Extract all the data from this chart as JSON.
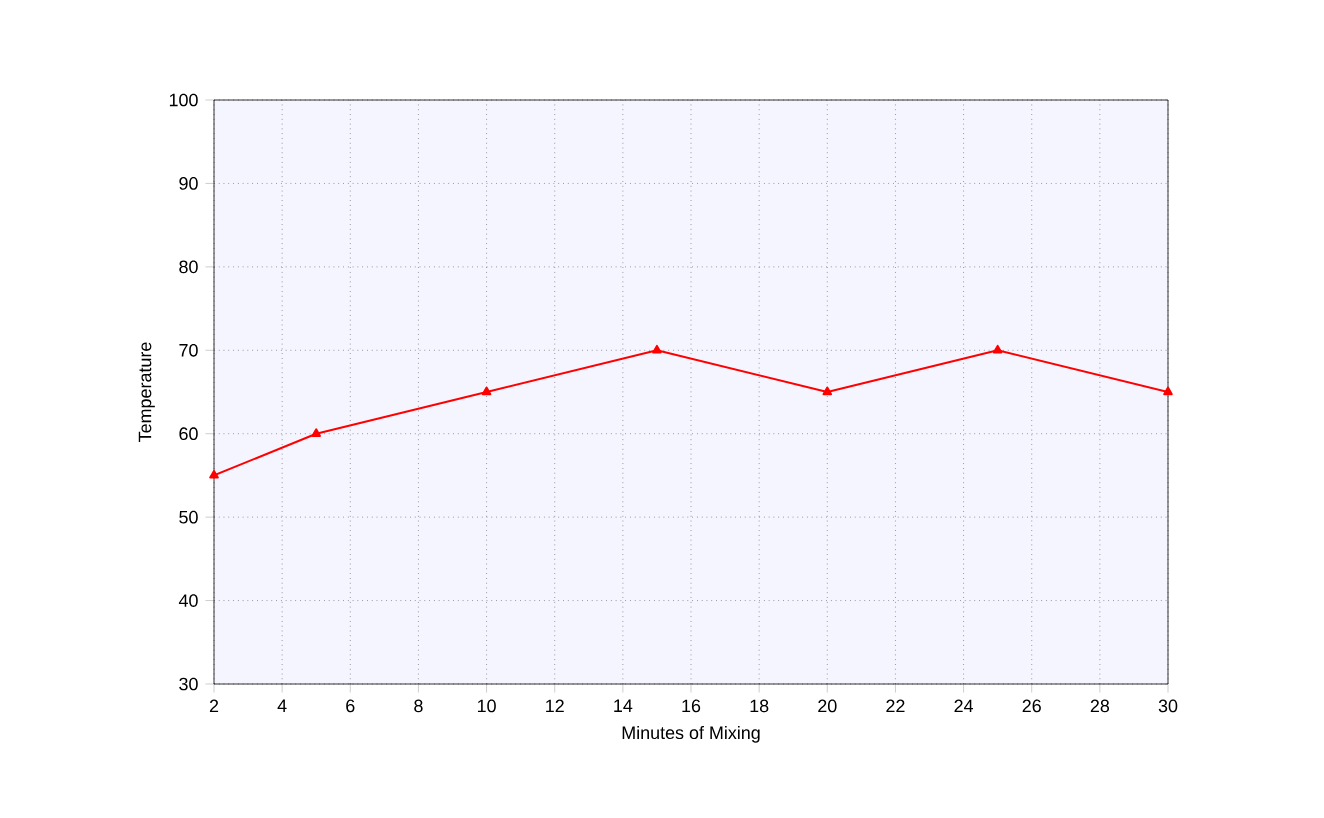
{
  "chart_data": {
    "type": "line",
    "xlabel": "Minutes of Mixing",
    "ylabel": "Temperature",
    "x": [
      2,
      5,
      10,
      15,
      20,
      25,
      30
    ],
    "series": [
      {
        "color": "#ff0000",
        "values": [
          55,
          60,
          65,
          70,
          65,
          70,
          65
        ]
      }
    ],
    "xlim": [
      2,
      30
    ],
    "xticks": [
      2,
      4,
      6,
      8,
      10,
      12,
      14,
      16,
      18,
      20,
      22,
      24,
      26,
      28,
      30
    ],
    "ylim": [
      30,
      100
    ],
    "yticks": [
      30,
      40,
      50,
      60,
      70,
      80,
      90,
      100
    ],
    "grid": true,
    "marker": "triangle",
    "line_style": "solid"
  }
}
